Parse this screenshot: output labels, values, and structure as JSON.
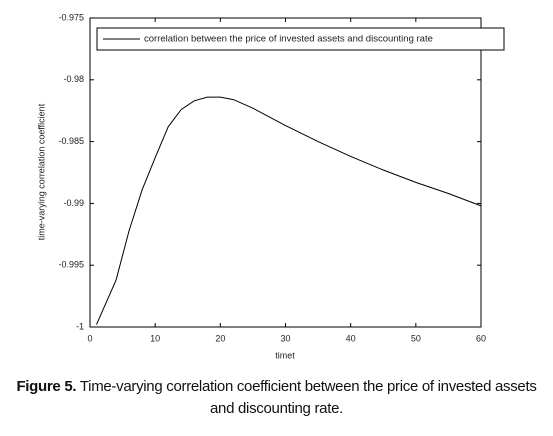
{
  "chart_data": {
    "type": "line",
    "legend_text": "correlation between the price of invested assets and discounting rate",
    "xlabel": "timet",
    "ylabel": "time-varying correlation coefficient",
    "x": [
      1,
      2,
      4,
      6,
      8,
      10,
      12,
      14,
      16,
      18,
      20,
      22,
      25,
      30,
      35,
      40,
      45,
      50,
      55,
      60
    ],
    "series": [
      {
        "name": "correlation between the price of invested assets and discounting rate",
        "color": "#000000",
        "values": [
          -0.9998,
          -0.9986,
          -0.9962,
          -0.9922,
          -0.9889,
          -0.9863,
          -0.9838,
          -0.9824,
          -0.9817,
          -0.9814,
          -0.9814,
          -0.9816,
          -0.9823,
          -0.9837,
          -0.985,
          -0.9862,
          -0.9873,
          -0.9883,
          -0.9892,
          -0.9902
        ]
      }
    ],
    "xlim": [
      0,
      60
    ],
    "xticks": [
      0,
      10,
      20,
      30,
      40,
      50,
      60
    ],
    "ylim": [
      -1,
      -0.975
    ],
    "yticks": [
      -1,
      -0.995,
      -0.99,
      -0.985,
      -0.98,
      -0.975
    ],
    "legend": "top",
    "caption": {
      "label": "Figure 5.",
      "text": "Time-varying correlation coefficient between the price of invested assets and discounting rate."
    }
  }
}
